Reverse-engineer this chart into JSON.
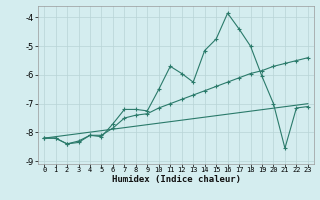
{
  "xlabel": "Humidex (Indice chaleur)",
  "bg_color": "#d4edef",
  "grid_color": "#b8d4d6",
  "line_color": "#2a7a6a",
  "xlim": [
    -0.5,
    23.5
  ],
  "ylim": [
    -9.1,
    -3.6
  ],
  "yticks": [
    -9,
    -8,
    -7,
    -6,
    -5,
    -4
  ],
  "xticks": [
    0,
    1,
    2,
    3,
    4,
    5,
    6,
    7,
    8,
    9,
    10,
    11,
    12,
    13,
    14,
    15,
    16,
    17,
    18,
    19,
    20,
    21,
    22,
    23
  ],
  "line1_x": [
    0,
    1,
    2,
    3,
    4,
    5,
    6,
    7,
    8,
    9,
    10,
    11,
    12,
    13,
    14,
    15,
    16,
    17,
    18,
    19,
    20,
    21,
    22,
    23
  ],
  "line1_y": [
    -8.2,
    -8.2,
    -8.4,
    -8.3,
    -8.1,
    -8.15,
    -7.7,
    -7.2,
    -7.2,
    -7.25,
    -6.5,
    -5.7,
    -5.95,
    -6.25,
    -5.15,
    -4.75,
    -3.85,
    -4.4,
    -5.0,
    -6.05,
    -7.0,
    -8.55,
    -7.15,
    -7.1
  ],
  "line2_x": [
    0,
    1,
    2,
    3,
    4,
    5,
    6,
    7,
    8,
    9,
    10,
    11,
    12,
    13,
    14,
    15,
    16,
    17,
    18,
    19,
    20,
    21,
    22,
    23
  ],
  "line2_y": [
    -8.2,
    -8.2,
    -8.4,
    -8.35,
    -8.1,
    -8.1,
    -7.85,
    -7.5,
    -7.4,
    -7.35,
    -7.15,
    -7.0,
    -6.85,
    -6.7,
    -6.55,
    -6.4,
    -6.25,
    -6.1,
    -5.95,
    -5.85,
    -5.7,
    -5.6,
    -5.5,
    -5.4
  ],
  "line3_x": [
    0,
    23
  ],
  "line3_y": [
    -8.2,
    -7.0
  ]
}
